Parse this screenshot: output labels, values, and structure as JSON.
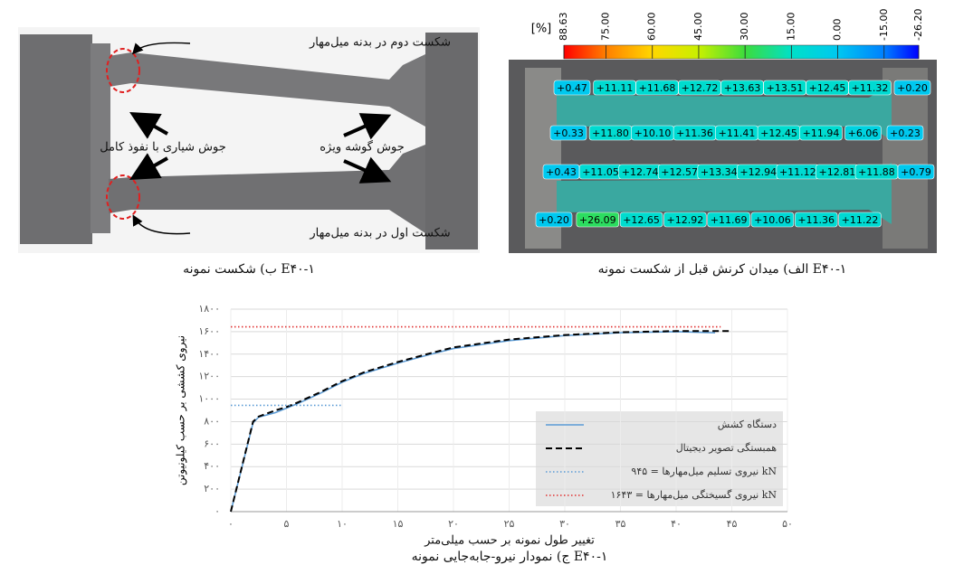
{
  "figure": {
    "panel_b": {
      "caption": "ب) شکست نمونه E۴۰-۱",
      "annotations": [
        "شکست دوم در بدنه میل‌مهار",
        "جوش شیاری با نفوذ کامل",
        "جوش گوشه ویژه",
        "شکست اول در بدنه میل‌مهار"
      ]
    },
    "panel_a": {
      "caption": "الف) میدان کرنش قبل از شکست نمونه E۴۰-۱",
      "colorbar": {
        "label": "[%]",
        "ticks": [
          88.63,
          {
            "value": 75,
            "label": "75.00"
          },
          {
            "value": 60,
            "label": "60.00"
          },
          {
            "value": 45,
            "label": "45.00"
          },
          {
            "value": 30,
            "label": "30.00"
          },
          {
            "value": 15,
            "label": "15.00"
          },
          {
            "value": 0,
            "label": "0.00"
          },
          {
            "value": -15,
            "label": "-15.00"
          },
          {
            "value": -26.2,
            "label": "-26.20"
          }
        ],
        "colors": [
          "#ff0000",
          "#ff7f00",
          "#ffd700",
          "#c8f000",
          "#3cdc3c",
          "#00e0c8",
          "#00c8f0",
          "#0080ff",
          "#0000ff"
        ]
      },
      "strain_labels": [
        [
          "+0.47",
          "+11.11",
          "+11.68",
          "+12.72",
          "+13.63",
          "+13.51",
          "+12.45",
          "+11.32",
          "+0.20"
        ],
        [
          "+0.33",
          "+11.80",
          "+10.10",
          "+11.36",
          "+11.41",
          "+12.45",
          "+11.94",
          "+6.06",
          "+0.23"
        ],
        [
          "+0.43",
          "+11.05",
          "+12.74",
          "+12.57",
          "+13.34",
          "+12.94",
          "+11.12",
          "+12.81",
          "+11.88",
          "+0.79"
        ],
        [
          "+0.20",
          "+26.09",
          "+12.65",
          "+12.92",
          "+11.69",
          "+10.06",
          "+11.36",
          "+11.22"
        ]
      ]
    }
  },
  "chart_data": {
    "type": "line",
    "caption": "ج) نمودار نیرو-جابه‌جایی نمونه E۴۰-۱",
    "x_label": "تغییر طول نمونه بر حسب میلی‌متر",
    "y_label": "نیروی کششی بر حسب کیلونیوتن",
    "xlim": [
      0,
      50
    ],
    "ylim": [
      0,
      1800
    ],
    "xticks": [
      {
        "value": 0,
        "label": "۰"
      },
      {
        "value": 5,
        "label": "۵"
      },
      {
        "value": 10,
        "label": "۱۰"
      },
      {
        "value": 15,
        "label": "۱۵"
      },
      {
        "value": 20,
        "label": "۲۰"
      },
      {
        "value": 25,
        "label": "۲۵"
      },
      {
        "value": 30,
        "label": "۳۰"
      },
      {
        "value": 35,
        "label": "۳۵"
      },
      {
        "value": 40,
        "label": "۴۰"
      },
      {
        "value": 45,
        "label": "۴۵"
      },
      {
        "value": 50,
        "label": "۵۰"
      }
    ],
    "yticks": [
      {
        "value": 0,
        "label": "۰"
      },
      {
        "value": 200,
        "label": "۲۰۰"
      },
      {
        "value": 400,
        "label": "۴۰۰"
      },
      {
        "value": 600,
        "label": "۶۰۰"
      },
      {
        "value": 800,
        "label": "۸۰۰"
      },
      {
        "value": 1000,
        "label": "۱۰۰۰"
      },
      {
        "value": 1200,
        "label": "۱۲۰۰"
      },
      {
        "value": 1400,
        "label": "۱۴۰۰"
      },
      {
        "value": 1600,
        "label": "۱۶۰۰"
      },
      {
        "value": 1800,
        "label": "۱۸۰۰"
      }
    ],
    "grid": true,
    "legend": "lower right",
    "series": [
      {
        "name": "دستگاه کشش",
        "color": "#5b9bd5",
        "dash": "solid",
        "x": [
          0,
          2,
          2.5,
          4,
          5,
          6,
          8,
          10,
          12,
          15,
          18,
          20,
          25,
          30,
          35,
          40,
          43.5
        ],
        "values": [
          0,
          790,
          840,
          880,
          920,
          960,
          1050,
          1150,
          1230,
          1320,
          1400,
          1450,
          1520,
          1565,
          1590,
          1600,
          1590
        ]
      },
      {
        "name": "همبستگی تصویر دیجیتال",
        "color": "#000000",
        "dash": "dashed",
        "x": [
          0,
          2,
          2.5,
          4,
          5,
          6,
          8,
          10,
          12,
          15,
          18,
          20,
          25,
          30,
          35,
          40,
          45
        ],
        "values": [
          0,
          800,
          845,
          900,
          930,
          970,
          1060,
          1160,
          1240,
          1330,
          1410,
          1460,
          1530,
          1570,
          1595,
          1605,
          1605
        ]
      },
      {
        "name": "نیروی تسلیم میل‌مهارها = ۹۴۵ kN",
        "color": "#5b9bd5",
        "dash": "dotted",
        "x": [
          0,
          10
        ],
        "values": [
          945,
          945
        ]
      },
      {
        "name": "نیروی گسیختگی میل‌مهارها = ۱۶۴۳ kN",
        "color": "#e03030",
        "dash": "dotted",
        "x": [
          0,
          44
        ],
        "values": [
          1643,
          1643
        ]
      }
    ]
  }
}
